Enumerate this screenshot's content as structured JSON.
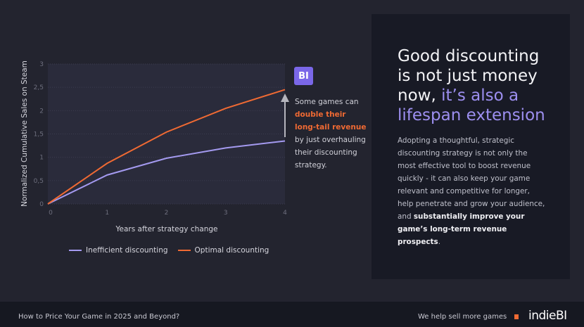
{
  "chart_data": {
    "type": "line",
    "x": [
      0,
      1,
      2,
      3,
      4
    ],
    "series": [
      {
        "name": "Inefficient discounting",
        "color": "#a49af0",
        "values": [
          0,
          0.62,
          0.98,
          1.2,
          1.35
        ]
      },
      {
        "name": "Optimal discounting",
        "color": "#f06a33",
        "values": [
          0,
          0.87,
          1.54,
          2.05,
          2.45
        ]
      }
    ],
    "xlabel": "Years after strategy change",
    "ylabel": "Normalized Cumulative Sales on Steam",
    "xticks": [
      "0",
      "1",
      "2",
      "3",
      "4"
    ],
    "yticks": [
      "0",
      "0,5",
      "1",
      "1,5",
      "2",
      "2,5",
      "3"
    ],
    "ytick_values": [
      0,
      0.5,
      1,
      1.5,
      2,
      2.5,
      3
    ],
    "xlim": [
      0,
      4
    ],
    "ylim": [
      0,
      3
    ],
    "grid": true,
    "legend_position": "bottom"
  },
  "annotation": {
    "badge": "BI",
    "pre": "Some games can ",
    "highlight": "double their long-tail revenue",
    "post": " by just overhauling their discounting strategy."
  },
  "card": {
    "headline_lines": [
      "Good discounting",
      "is not just money",
      "now, "
    ],
    "headline_highlight_lines": [
      "it’s also a",
      "lifespan extension"
    ],
    "body_pre": "Adopting a thoughtful, strategic discounting strategy is not only the most effective tool to boost revenue quickly - it can also keep your game relevant and competitive for longer, help penetrate and grow your audience, and ",
    "body_bold": "substantially improve your game’s long-term revenue prospects",
    "body_post": "."
  },
  "footer": {
    "title": "How to Price Your Game in 2025 and Beyond?",
    "tagline": "We help sell more games",
    "logo": "indieBI"
  }
}
